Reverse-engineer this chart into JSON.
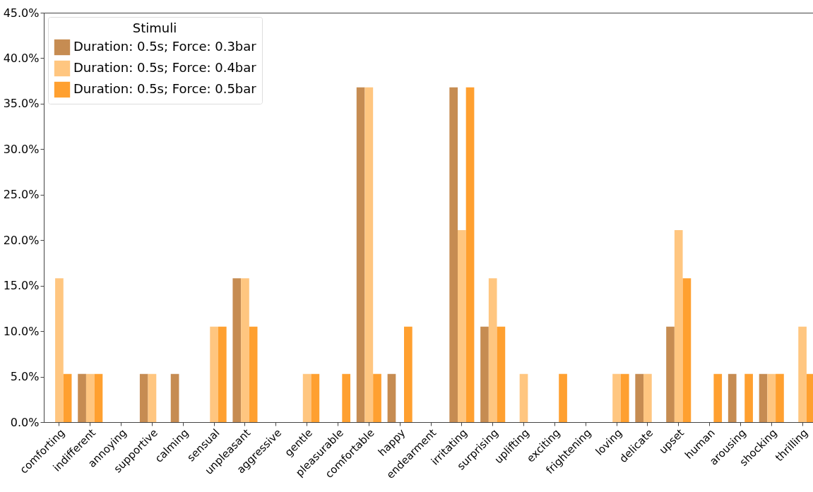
{
  "chart_data": {
    "type": "bar",
    "legend_title": "Stimuli",
    "legend": "top left",
    "grid": false,
    "categories": [
      "comforting",
      "indifferent",
      "annoying",
      "supportive",
      "calming",
      "sensual",
      "unpleasant",
      "aggressive",
      "gentle",
      "pleasurable",
      "comfortable",
      "happy",
      "endearment",
      "irritating",
      "surprising",
      "uplifting",
      "exciting",
      "frightening",
      "loving",
      "delicate",
      "upset",
      "human",
      "arousing",
      "shocking",
      "thrilling"
    ],
    "ylim": [
      0,
      45
    ],
    "yticks": [
      {
        "value": 0,
        "label": "0.0%"
      },
      {
        "value": 5,
        "label": "5.0%"
      },
      {
        "value": 10,
        "label": "10.0%"
      },
      {
        "value": 15,
        "label": "15.0%"
      },
      {
        "value": 20,
        "label": "20.0%"
      },
      {
        "value": 25,
        "label": "25.0%"
      },
      {
        "value": 30,
        "label": "30.0%"
      },
      {
        "value": 35,
        "label": "35.0%"
      },
      {
        "value": 40,
        "label": "40.0%"
      },
      {
        "value": 45,
        "label": "45.0%"
      }
    ],
    "series": [
      {
        "name": "Duration: 0.5s; Force: 0.3bar",
        "color": "#c68c52",
        "values": [
          0,
          5.3,
          0,
          5.3,
          5.3,
          0,
          15.8,
          0,
          0,
          0,
          36.8,
          5.3,
          0,
          36.8,
          10.5,
          0,
          0,
          0,
          0,
          5.3,
          10.5,
          0,
          5.3,
          5.3,
          0
        ]
      },
      {
        "name": "Duration: 0.5s; Force: 0.4bar",
        "color": "#ffc680",
        "values": [
          15.8,
          5.3,
          0,
          5.3,
          0,
          10.5,
          15.8,
          0,
          5.3,
          0,
          36.8,
          0,
          0,
          21.1,
          15.8,
          5.3,
          0,
          0,
          5.3,
          5.3,
          21.1,
          0,
          0,
          5.3,
          10.5
        ]
      },
      {
        "name": "Duration: 0.5s; Force: 0.5bar",
        "color": "#ffa030",
        "values": [
          5.3,
          5.3,
          0,
          0,
          0,
          10.5,
          10.5,
          0,
          5.3,
          5.3,
          5.3,
          10.5,
          0,
          36.8,
          10.5,
          0,
          5.3,
          0,
          5.3,
          0,
          15.8,
          5.3,
          5.3,
          5.3,
          5.3
        ]
      }
    ]
  }
}
